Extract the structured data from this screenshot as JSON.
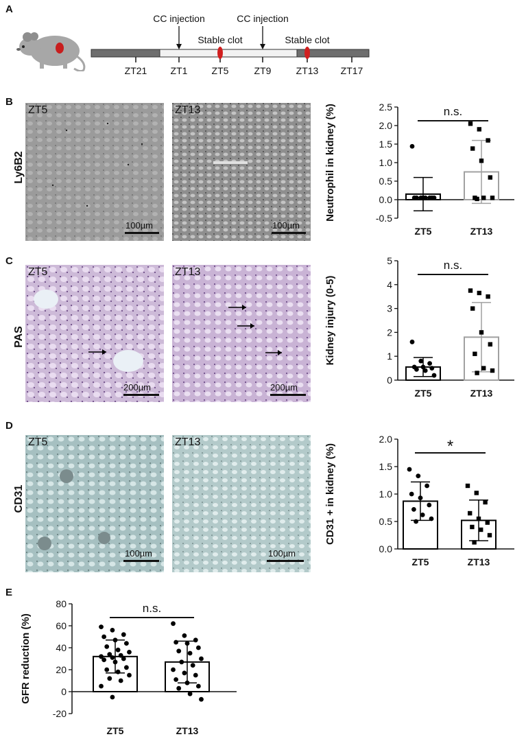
{
  "panels": {
    "A": {
      "letter": "A",
      "timeline": {
        "ticks": [
          "ZT21",
          "ZT1",
          "ZT5",
          "ZT9",
          "ZT13",
          "ZT17"
        ],
        "events": [
          {
            "label": "CC injection",
            "at": "ZT1"
          },
          {
            "label": "CC injection",
            "at": "ZT9"
          }
        ],
        "clots": [
          {
            "label": "Stable clot",
            "at": "ZT5"
          },
          {
            "label": "Stable clot",
            "at": "ZT13"
          }
        ]
      }
    },
    "B": {
      "letter": "B",
      "stain": "Ly6B2",
      "images": [
        {
          "label": "ZT5",
          "scale": "100µm"
        },
        {
          "label": "ZT13",
          "scale": "100µm"
        }
      ]
    },
    "C": {
      "letter": "C",
      "stain": "PAS",
      "images": [
        {
          "label": "ZT5",
          "scale": "200µm"
        },
        {
          "label": "ZT13",
          "scale": "200µm"
        }
      ]
    },
    "D": {
      "letter": "D",
      "stain": "CD31",
      "images": [
        {
          "label": "ZT5",
          "scale": "100µm"
        },
        {
          "label": "ZT13",
          "scale": "100µm"
        }
      ]
    },
    "E": {
      "letter": "E"
    }
  },
  "chart_data": [
    {
      "id": "B",
      "type": "bar",
      "ylabel": "Neutrophil in kidney (%)",
      "categories": [
        "ZT5",
        "ZT13"
      ],
      "ylim": [
        -0.5,
        2.5
      ],
      "yticks": [
        "-0.5",
        "0.0",
        "0.5",
        "1.0",
        "1.5",
        "2.0",
        "2.5"
      ],
      "significance": "n.s.",
      "bar_colors": [
        "#000000",
        "#a0a0a0"
      ],
      "series": [
        {
          "category": "ZT5",
          "mean": 0.15,
          "sd": 0.45,
          "marker": "circle",
          "points": [
            1.44,
            0.05,
            0.05,
            0.05,
            0.05,
            0.05,
            0.05,
            0.05,
            0.05
          ]
        },
        {
          "category": "ZT13",
          "mean": 0.75,
          "sd": 0.85,
          "marker": "square",
          "points": [
            2.05,
            1.9,
            1.6,
            1.38,
            1.05,
            0.6,
            0.05,
            0.05,
            0.05,
            0.02
          ]
        }
      ]
    },
    {
      "id": "C",
      "type": "bar",
      "ylabel": "Kidney injury (0-5)",
      "categories": [
        "ZT5",
        "ZT13"
      ],
      "ylim": [
        0,
        5
      ],
      "yticks": [
        "0",
        "1",
        "2",
        "3",
        "4",
        "5"
      ],
      "significance": "n.s.",
      "bar_colors": [
        "#000000",
        "#a0a0a0"
      ],
      "series": [
        {
          "category": "ZT5",
          "mean": 0.55,
          "sd": 0.4,
          "marker": "circle",
          "points": [
            1.6,
            0.8,
            0.7,
            0.55,
            0.55,
            0.5,
            0.45,
            0.4,
            0.2
          ]
        },
        {
          "category": "ZT13",
          "mean": 1.8,
          "sd": 1.45,
          "marker": "square",
          "points": [
            3.75,
            3.65,
            3.5,
            3.0,
            2.0,
            1.5,
            1.1,
            0.5,
            0.4,
            0.3
          ]
        }
      ]
    },
    {
      "id": "D",
      "type": "bar",
      "ylabel": "CD31 + in kidney (%)",
      "categories": [
        "ZT5",
        "ZT13"
      ],
      "ylim": [
        0,
        2.0
      ],
      "yticks": [
        "0.0",
        "0.5",
        "1.0",
        "1.5",
        "2.0"
      ],
      "significance": "*",
      "bar_colors": [
        "#000000",
        "#000000"
      ],
      "series": [
        {
          "category": "ZT5",
          "mean": 0.87,
          "sd": 0.35,
          "marker": "circle",
          "points": [
            1.45,
            1.33,
            1.15,
            1.0,
            0.93,
            0.8,
            0.72,
            0.62,
            0.55,
            0.5
          ]
        },
        {
          "category": "ZT13",
          "mean": 0.52,
          "sd": 0.37,
          "marker": "square",
          "points": [
            1.15,
            1.02,
            0.85,
            0.65,
            0.55,
            0.48,
            0.4,
            0.35,
            0.25,
            0.12
          ]
        }
      ]
    },
    {
      "id": "E",
      "type": "bar",
      "ylabel": "GFR reduction (%)",
      "categories": [
        "ZT5",
        "ZT13"
      ],
      "ylim": [
        -20,
        80
      ],
      "yticks": [
        "-20",
        "0",
        "20",
        "40",
        "60",
        "80"
      ],
      "significance": "n.s.",
      "bar_colors": [
        "#000000",
        "#000000"
      ],
      "series": [
        {
          "category": "ZT5",
          "mean": 32,
          "sd": 15,
          "marker": "circle",
          "points": [
            59,
            56,
            52,
            50,
            47,
            44,
            41,
            38,
            36,
            34,
            33,
            32,
            31,
            30,
            29,
            27,
            22,
            20,
            18,
            15,
            12,
            10,
            5,
            -5
          ]
        },
        {
          "category": "ZT13",
          "mean": 27,
          "sd": 19,
          "marker": "circle",
          "points": [
            62,
            51,
            47,
            45,
            44,
            40,
            37,
            35,
            30,
            27,
            24,
            20,
            17,
            15,
            11,
            8,
            5,
            3,
            -2,
            -7
          ]
        }
      ]
    }
  ]
}
